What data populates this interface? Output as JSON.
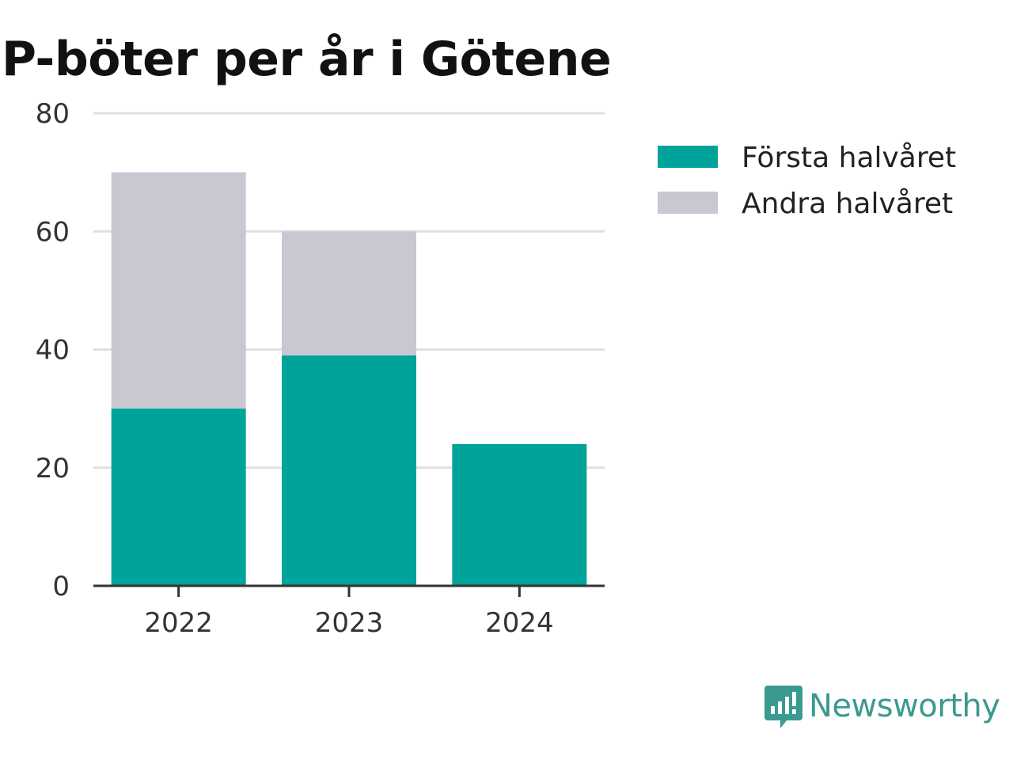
{
  "chart_data": {
    "type": "bar",
    "stacked": true,
    "title": "P-böter per år i Götene",
    "categories": [
      "2022",
      "2023",
      "2024"
    ],
    "series": [
      {
        "name": "Första halvåret",
        "color": "#00a39a",
        "values": [
          30,
          39,
          24
        ]
      },
      {
        "name": "Andra halvåret",
        "color": "#c8c7d2",
        "values": [
          40,
          21,
          0
        ]
      }
    ],
    "ylim": [
      0,
      80
    ],
    "yticks": [
      0,
      20,
      40,
      60,
      80
    ],
    "grid": true,
    "legend": "right"
  },
  "brand": {
    "name": "Newsworthy",
    "icon": "newsworthy-logo-icon",
    "color": "#3a9a8f"
  }
}
